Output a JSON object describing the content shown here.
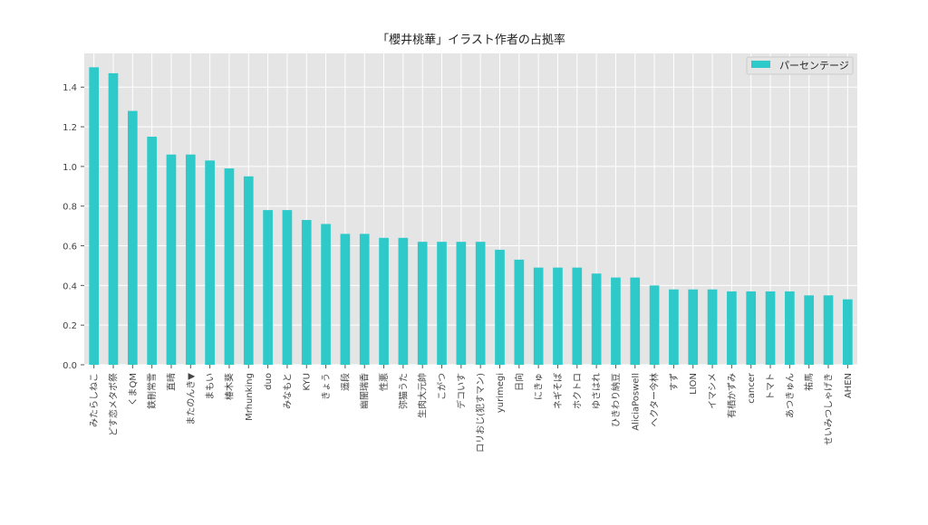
{
  "chart_data": {
    "type": "bar",
    "title": "「櫻井桃華」イラスト作者の占拠率",
    "xlabel": "",
    "ylabel": "",
    "ylim": [
      0,
      1.57
    ],
    "yticks": [
      "0.0",
      "0.2",
      "0.4",
      "0.6",
      "0.8",
      "1.0",
      "1.2",
      "1.4"
    ],
    "grid": true,
    "legend_position": "top-right",
    "colors": {
      "bar": "#2ec9c9",
      "plot_bg": "#e5e5e5",
      "grid": "#ffffff",
      "text": "#222222"
    },
    "categories": [
      "みたらしねこ",
      "どす恋メタボ祭",
      "くまQM",
      "鉄刪常雪",
      "直晴",
      "またのんき▼",
      "まもい",
      "椿木葵",
      "Mrhunking",
      "duo",
      "みなもと",
      "KYU",
      "きょう",
      "遥段",
      "幽闇瑞香",
      "性悪",
      "弥猫うた",
      "生肉大元帥",
      "こがつ",
      "デコいす",
      "ロリおじ(犯すマン)",
      "yurimegi",
      "日向",
      "にきゅ",
      "ネギそば",
      "ホクトロ",
      "ゆさはれ",
      "ひきわり納豆",
      "AliciaPoswell",
      "ヘクター今林",
      "すず",
      "LION",
      "イマシメ",
      "有栖かずみ",
      "cancer",
      "トマト",
      "あつきゅん",
      "祐馬",
      "せいみつしゃげき",
      "AHEN"
    ],
    "series": [
      {
        "name": "パーセンテージ",
        "values": [
          1.5,
          1.47,
          1.28,
          1.15,
          1.06,
          1.06,
          1.03,
          0.99,
          0.95,
          0.78,
          0.78,
          0.73,
          0.71,
          0.66,
          0.66,
          0.64,
          0.64,
          0.62,
          0.62,
          0.62,
          0.62,
          0.58,
          0.53,
          0.49,
          0.49,
          0.49,
          0.46,
          0.44,
          0.44,
          0.4,
          0.38,
          0.38,
          0.38,
          0.37,
          0.37,
          0.37,
          0.37,
          0.35,
          0.35,
          0.33
        ]
      }
    ]
  }
}
